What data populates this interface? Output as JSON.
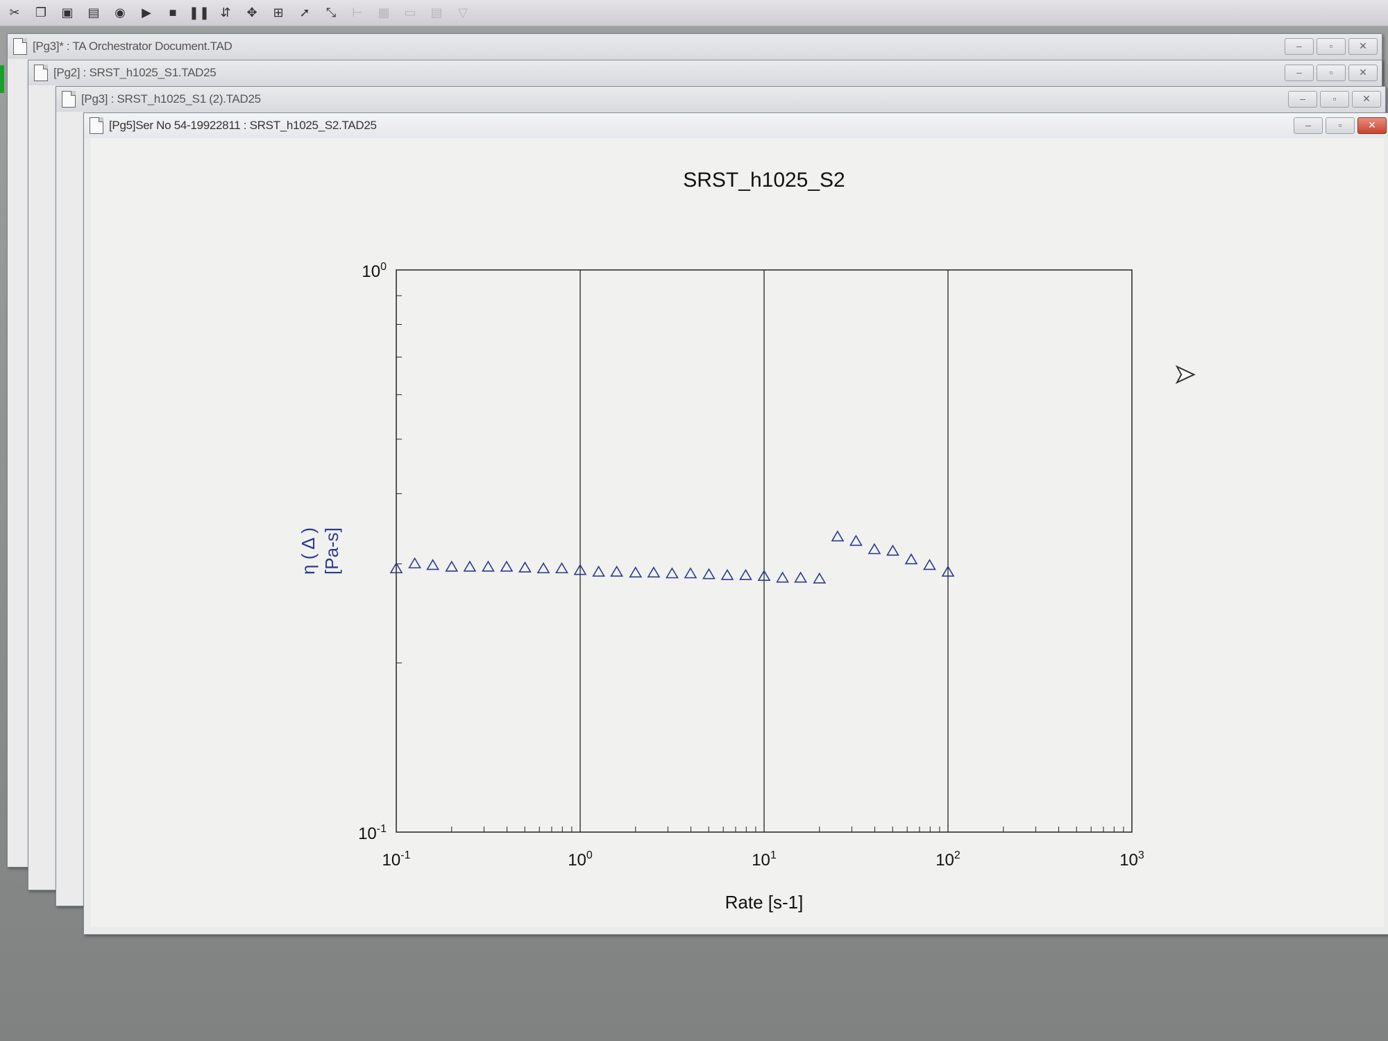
{
  "toolbar": {
    "buttons": [
      {
        "icon": "scissors-icon",
        "glyph": "✂",
        "enabled": true
      },
      {
        "icon": "copy-icon",
        "glyph": "❐",
        "enabled": true
      },
      {
        "icon": "save-icon",
        "glyph": "▣",
        "enabled": true
      },
      {
        "icon": "print-icon",
        "glyph": "▤",
        "enabled": true
      },
      {
        "icon": "record-icon",
        "glyph": "◉",
        "enabled": true
      },
      {
        "icon": "run-icon",
        "glyph": "▶",
        "enabled": true
      },
      {
        "icon": "stop-icon",
        "glyph": "■",
        "enabled": true
      },
      {
        "icon": "pause-icon",
        "glyph": "❚❚",
        "enabled": true
      },
      {
        "icon": "step-icon",
        "glyph": "⇵",
        "enabled": true
      },
      {
        "icon": "tool-icon",
        "glyph": "✥",
        "enabled": true
      },
      {
        "icon": "chart-icon",
        "glyph": "⊞",
        "enabled": true
      },
      {
        "icon": "pointer-icon",
        "glyph": "➚",
        "enabled": true
      },
      {
        "icon": "zoom-icon",
        "glyph": "⤡",
        "enabled": true
      },
      {
        "icon": "cursor-data-icon",
        "glyph": "⊢",
        "enabled": false
      },
      {
        "icon": "grid-icon",
        "glyph": "▦",
        "enabled": false
      },
      {
        "icon": "legend-icon",
        "glyph": "▭",
        "enabled": false
      },
      {
        "icon": "table-icon",
        "glyph": "▤",
        "enabled": false
      },
      {
        "icon": "filter-icon",
        "glyph": "▽",
        "enabled": false
      }
    ]
  },
  "windows": [
    {
      "title": "[Pg3]* : TA Orchestrator Document.TAD"
    },
    {
      "title": "[Pg2] : SRST_h1025_S1.TAD25"
    },
    {
      "title": "[Pg3] : SRST_h1025_S1 (2).TAD25"
    },
    {
      "title": "[Pg5]Ser No 54-19922811 : SRST_h1025_S2.TAD25"
    }
  ],
  "window_buttons": {
    "minimize": "–",
    "maximize": "▫",
    "close": "✕"
  },
  "chart_data": {
    "type": "scatter",
    "title": "SRST_h1025_S2",
    "xlabel": "Rate [s-1]",
    "ylabel_symbol": "η ( Δ )",
    "ylabel_unit": "[Pa-s]",
    "xscale": "log",
    "yscale": "log",
    "xlim": [
      0.1,
      1000
    ],
    "ylim": [
      0.1,
      1
    ],
    "x_ticks": [
      {
        "base": "10",
        "exp": "-1",
        "value": 0.1
      },
      {
        "base": "10",
        "exp": "0",
        "value": 1
      },
      {
        "base": "10",
        "exp": "1",
        "value": 10
      },
      {
        "base": "10",
        "exp": "2",
        "value": 100
      },
      {
        "base": "10",
        "exp": "3",
        "value": 1000
      }
    ],
    "y_ticks": [
      {
        "base": "10",
        "exp": "-1",
        "value": 0.1
      },
      {
        "base": "10",
        "exp": "0",
        "value": 1
      }
    ],
    "grid": "major-x",
    "marker": "triangle-open",
    "marker_color": "#2d3a8c",
    "series": [
      {
        "points": [
          [
            0.1,
            0.294
          ],
          [
            0.126,
            0.3
          ],
          [
            0.158,
            0.298
          ],
          [
            0.2,
            0.296
          ],
          [
            0.251,
            0.296
          ],
          [
            0.316,
            0.296
          ],
          [
            0.398,
            0.296
          ],
          [
            0.501,
            0.295
          ],
          [
            0.631,
            0.294
          ],
          [
            0.794,
            0.294
          ],
          [
            1.0,
            0.292
          ],
          [
            1.26,
            0.29
          ],
          [
            1.58,
            0.29
          ],
          [
            2.0,
            0.289
          ],
          [
            2.51,
            0.289
          ],
          [
            3.16,
            0.288
          ],
          [
            3.98,
            0.288
          ],
          [
            5.01,
            0.287
          ],
          [
            6.31,
            0.286
          ],
          [
            7.94,
            0.286
          ],
          [
            10.0,
            0.285
          ],
          [
            12.6,
            0.283
          ],
          [
            15.8,
            0.283
          ],
          [
            20.0,
            0.282
          ],
          [
            25.1,
            0.335
          ],
          [
            31.6,
            0.329
          ],
          [
            39.8,
            0.318
          ],
          [
            50.1,
            0.316
          ],
          [
            63.1,
            0.305
          ],
          [
            79.4,
            0.298
          ],
          [
            100.0,
            0.29
          ]
        ]
      }
    ]
  }
}
